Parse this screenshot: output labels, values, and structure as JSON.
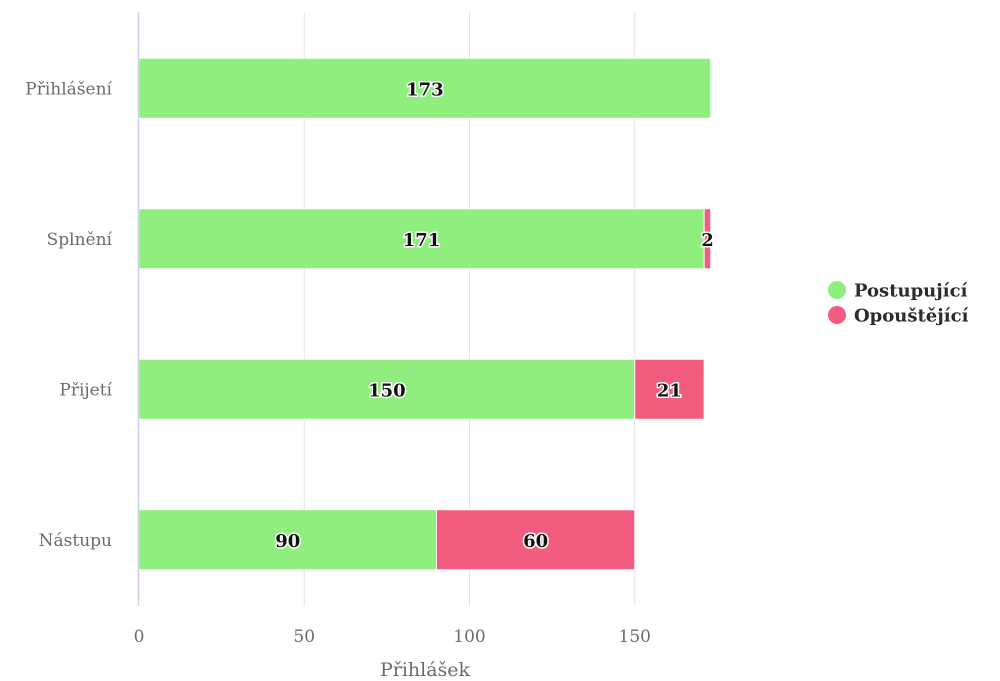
{
  "chart_data": {
    "type": "bar",
    "orientation": "horizontal",
    "stacked": true,
    "categories": [
      "Přihlášení",
      "Splnění",
      "Přijetí",
      "Nástupu"
    ],
    "series": [
      {
        "name": "Postupující",
        "values": [
          173,
          171,
          150,
          90
        ],
        "color": "#90ee7e"
      },
      {
        "name": "Opouštějící",
        "values": [
          0,
          2,
          21,
          60
        ],
        "color": "#f25c7e"
      }
    ],
    "xlabel": "Přihlášek",
    "ylabel": "",
    "xlim": [
      0,
      175
    ],
    "xticks": [
      0,
      50,
      100,
      150
    ],
    "grid": true,
    "legend_position": "right"
  }
}
